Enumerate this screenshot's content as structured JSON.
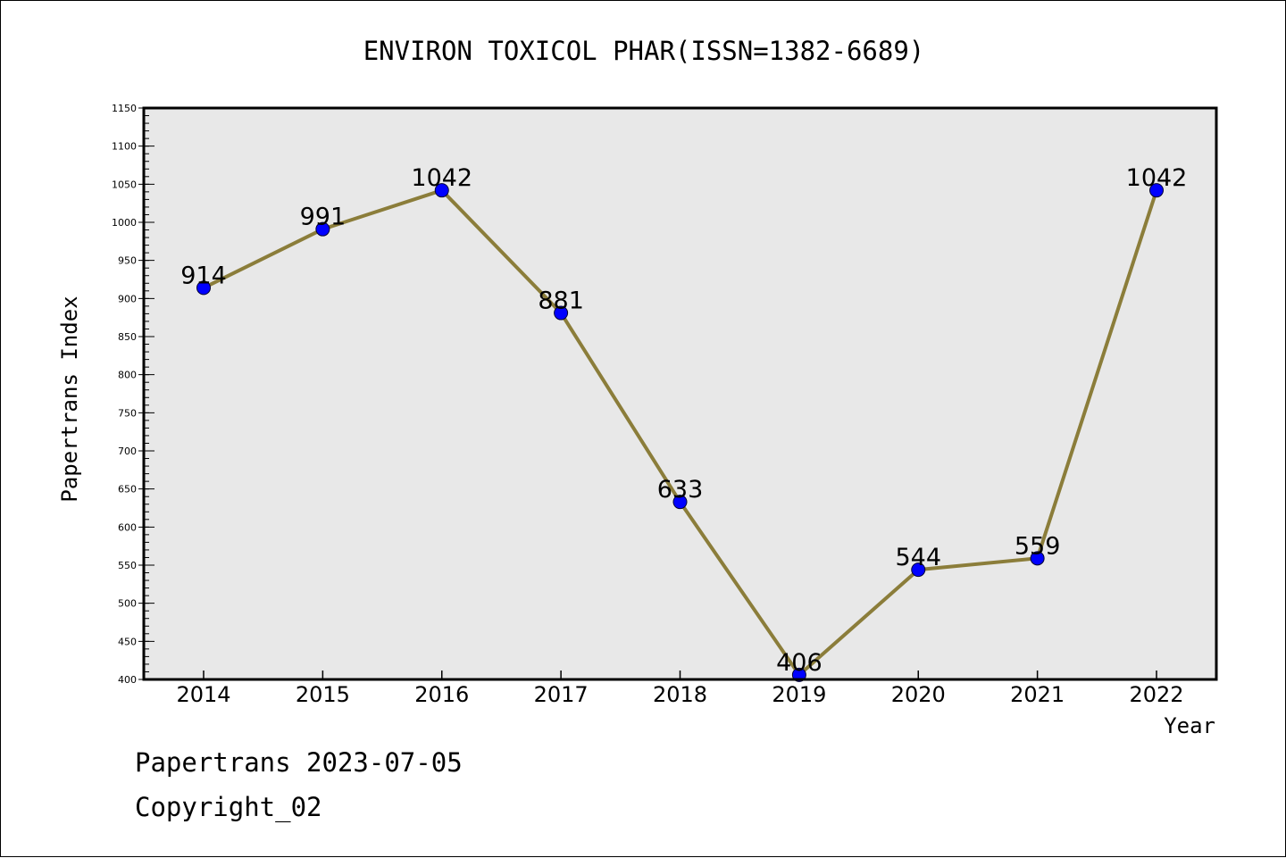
{
  "chart_data": {
    "type": "line",
    "title": "ENVIRON TOXICOL PHAR(ISSN=1382-6689)",
    "xlabel": "Year",
    "ylabel": "Papertrans Index",
    "categories": [
      "2014",
      "2015",
      "2016",
      "2017",
      "2018",
      "2019",
      "2020",
      "2021",
      "2022"
    ],
    "series": [
      {
        "values": [
          914,
          991,
          1042,
          881,
          633,
          406,
          544,
          559,
          1042
        ]
      }
    ],
    "ylim": [
      400,
      1150
    ],
    "yticks": [
      400,
      450,
      500,
      550,
      600,
      650,
      700,
      750,
      800,
      850,
      900,
      950,
      1000,
      1050,
      1100,
      1150
    ],
    "grid": false,
    "legend": "none",
    "colors": {
      "line": "#8b7d3a",
      "marker": "#0000ff",
      "plot_background": "#e8e8e8"
    }
  },
  "footer": {
    "line1": "Papertrans 2023-07-05",
    "line2": "Copyright_02"
  }
}
